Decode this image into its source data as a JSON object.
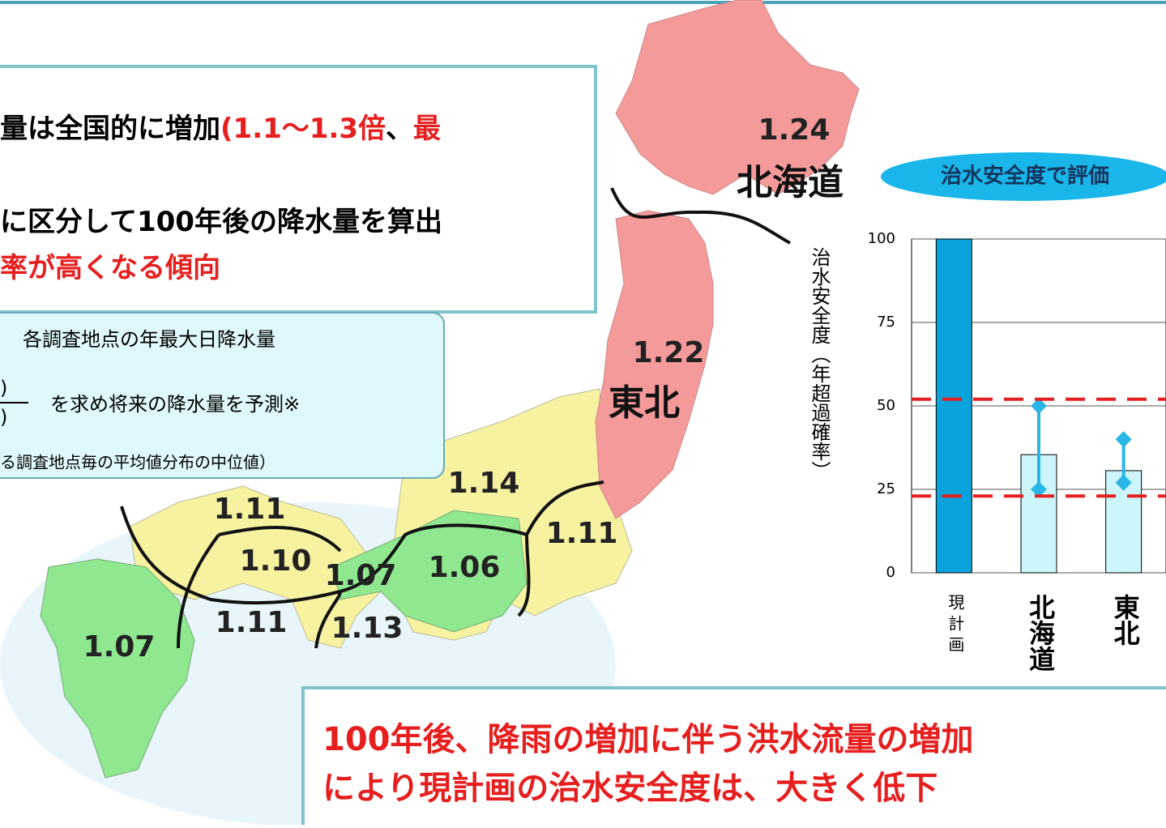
{
  "top_box": {
    "lines": [
      [
        "量は全国的に増加",
        "(1.1～1.3倍",
        "、",
        "最"
      ],
      [
        "に区分して100年後の降水量を算出"
      ],
      [
        "率が高くなる傾向"
      ]
    ]
  },
  "note_box": {
    "line1": "各調査地点の年最大日降水量",
    "numerator": ")",
    "denominator": ")",
    "line2": "を求め将来の降水量を予測※",
    "footnote": "る調査地点毎の平均値分布の中位値）"
  },
  "map": {
    "regions": [
      {
        "label": "1.24",
        "name": "北海道"
      },
      {
        "label": "1.22",
        "name": "東北"
      },
      {
        "label": "1.14"
      },
      {
        "label": "1.11"
      },
      {
        "label": "1.10"
      },
      {
        "label": "1.07"
      },
      {
        "label": "1.06"
      },
      {
        "label": "1.11"
      },
      {
        "label": "1.11"
      },
      {
        "label": "1.13"
      },
      {
        "label": "1.07"
      }
    ]
  },
  "badge": "治水安全度で評価",
  "chart_data": {
    "type": "bar",
    "y_label": "治水安全度（年超過確率）",
    "categories": [
      "現計画",
      "北海道",
      "東北"
    ],
    "values": [
      100,
      35.4,
      30.6
    ],
    "colors": [
      "#0aa3dc",
      "#ccf6fb",
      "#ccf6fb"
    ],
    "range_low": [
      null,
      25,
      27
    ],
    "range_high": [
      null,
      50,
      40
    ],
    "range_color": "#29b6e6",
    "reference_lines": [
      52,
      23
    ],
    "reference_color": "#e61e1e",
    "ylim": [
      0,
      100
    ],
    "yticks": [
      0,
      25,
      50,
      75,
      100
    ],
    "grid": true
  },
  "conclusion": {
    "lines": [
      "100年後、降雨の増加に伴う洪水流量の増加",
      "により現計画の治水安全度は、大きく低下"
    ]
  }
}
